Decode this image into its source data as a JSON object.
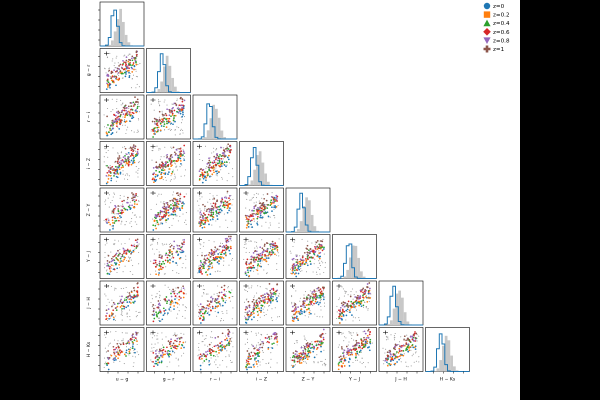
{
  "chart_data": {
    "type": "scatter",
    "layout": "corner-plot",
    "variables": [
      "u − g",
      "g − r",
      "r − i",
      "i − Z",
      "Z − Y",
      "Y − J",
      "J − H",
      "H − Ks"
    ],
    "legend": {
      "placement": "top-right",
      "entries": [
        {
          "label": "z=0",
          "color": "#1f77b4",
          "marker": "circle"
        },
        {
          "label": "z=0.2",
          "color": "#ff7f0e",
          "marker": "square"
        },
        {
          "label": "z=0.4",
          "color": "#2ca02c",
          "marker": "triangle-up"
        },
        {
          "label": "z=0.6",
          "color": "#d62728",
          "marker": "diamond"
        },
        {
          "label": "z=0.8",
          "color": "#9467bd",
          "marker": "triangle-down"
        },
        {
          "label": "z=1",
          "color": "#8c564b",
          "marker": "plus"
        }
      ]
    },
    "diagonal": {
      "type": "histogram",
      "series": [
        {
          "style": "step",
          "color": "#1f77b4"
        },
        {
          "style": "filled",
          "color": "#c8c8c8"
        }
      ]
    },
    "background_scatter_color": "#9a9a9a",
    "grid": false
  }
}
